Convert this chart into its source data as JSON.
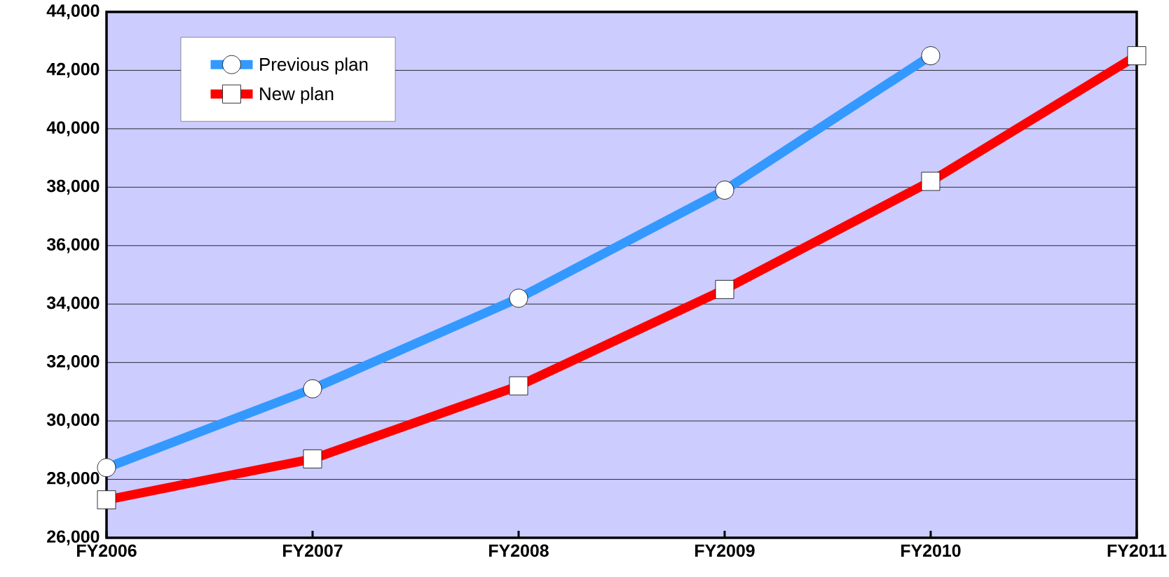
{
  "chart_data": {
    "type": "line",
    "categories": [
      "FY2006",
      "FY2007",
      "FY2008",
      "FY2009",
      "FY2010",
      "FY2011"
    ],
    "series": [
      {
        "name": "Previous plan",
        "color": "#3399ff",
        "marker": "circle",
        "values": [
          28400,
          31100,
          34200,
          37900,
          42500,
          null
        ]
      },
      {
        "name": "New plan",
        "color": "#ff0000",
        "marker": "square",
        "values": [
          27300,
          28700,
          31200,
          34500,
          38200,
          42500
        ]
      }
    ],
    "ylim": [
      26000,
      44000
    ],
    "yticks": [
      {
        "value": 26000,
        "label": "26,000"
      },
      {
        "value": 28000,
        "label": "28,000"
      },
      {
        "value": 30000,
        "label": "30,000"
      },
      {
        "value": 32000,
        "label": "32,000"
      },
      {
        "value": 34000,
        "label": "34,000"
      },
      {
        "value": 36000,
        "label": "36,000"
      },
      {
        "value": 38000,
        "label": "38,000"
      },
      {
        "value": 40000,
        "label": "40,000"
      },
      {
        "value": 42000,
        "label": "42,000"
      },
      {
        "value": 44000,
        "label": "44,000"
      }
    ],
    "grid": "y",
    "legend": "top left",
    "line_style": "solid"
  }
}
